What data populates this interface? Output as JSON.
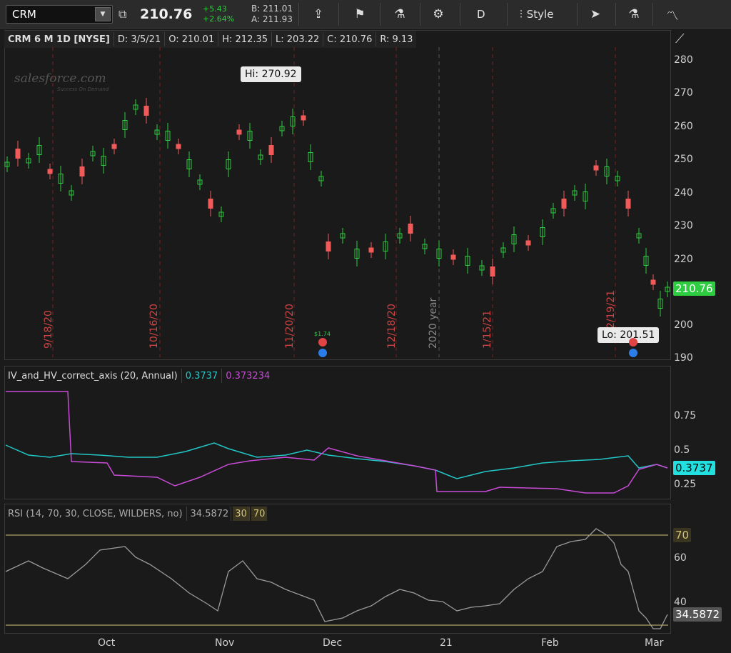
{
  "toolbar": {
    "symbol": "CRM",
    "last": "210.76",
    "change": "+5.43",
    "change_pct": "+2.64%",
    "bid": "B: 211.01",
    "ask": "A: 211.93",
    "interval": "D",
    "style_label": "Style",
    "icons": [
      "share-icon",
      "flag-icon",
      "flask-icon",
      "gear-icon",
      "chart-style-icon",
      "cursor-icon",
      "studies-flask-icon",
      "drawing-icon"
    ]
  },
  "header": {
    "title": "CRM 6 M 1D [NYSE]",
    "date": "D: 3/5/21",
    "open": "O: 210.01",
    "high": "H: 212.35",
    "low": "L: 203.22",
    "close": "C: 210.76",
    "range": "R: 9.13"
  },
  "watermark": {
    "logo": "salesforce.com",
    "tagline": "Success On Demand"
  },
  "price_axis": [
    "280",
    "270",
    "260",
    "250",
    "240",
    "230",
    "220",
    "210",
    "200",
    "190"
  ],
  "current_price_tag": "210.76",
  "hi_callout": "Hi: 270.92",
  "lo_callout": "Lo: 201.51",
  "dividend_label": "$1.74",
  "vertical_dates": [
    "9/18/20",
    "10/16/20",
    "11/20/20",
    "12/18/20",
    "2020 year",
    "1/15/21",
    "2/19/21"
  ],
  "iv_study": {
    "name": "IV_and_HV_correct_axis (20, Annual)",
    "iv_value": "0.3737",
    "hv_value": "0.373234",
    "axis": [
      "0.75",
      "0.5",
      "0.25"
    ],
    "tag": "0.3737"
  },
  "rsi_study": {
    "name": "RSI (14, 70, 30, CLOSE, WILDERS, no)",
    "value": "34.5872",
    "ob": "30",
    "os": "70",
    "axis": [
      "70",
      "60",
      "40"
    ],
    "tag": "34.5872",
    "tag70": "70"
  },
  "months": [
    "Oct",
    "Nov",
    "Dec",
    "21",
    "Feb",
    "Mar"
  ],
  "colors": {
    "up": "#2ecc40",
    "down": "#f25a5a",
    "iv": "#22c7c7",
    "hv": "#c84bd6",
    "rsi": "#9a9a9a",
    "level": "#d6c47a"
  }
}
